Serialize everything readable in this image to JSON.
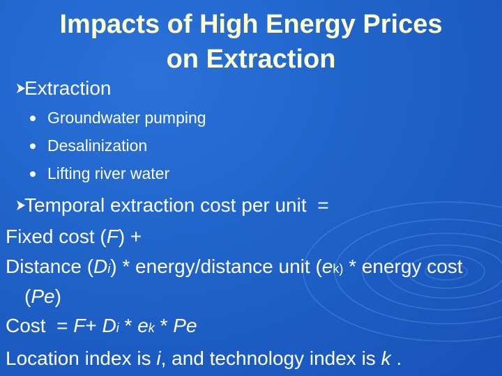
{
  "title": {
    "lines": [
      "Impacts of High Energy Prices",
      "on Extraction"
    ]
  },
  "bullets": [
    {
      "text": "Extraction",
      "items": [
        "Groundwater pumping",
        "Desalinization",
        "Lifting river water"
      ]
    },
    {
      "text": "Temporal extraction cost per unit  ="
    }
  ],
  "paragraphs": [
    [
      {
        "text": "Fixed cost ("
      },
      {
        "text": "F",
        "italic": true
      },
      {
        "text": ") +"
      }
    ],
    [
      {
        "text": "Distance ("
      },
      {
        "text": "D",
        "italic": true
      },
      {
        "text": "i",
        "italic": true,
        "sub": true
      },
      {
        "text": ") * energy/distance unit ("
      },
      {
        "text": "e",
        "italic": true
      },
      {
        "text": "k)",
        "sub": true
      },
      {
        "text": " * energy cost ("
      },
      {
        "text": "Pe",
        "italic": true
      },
      {
        "text": ")"
      }
    ],
    [
      {
        "text": "Cost  = "
      },
      {
        "text": "F",
        "italic": true
      },
      {
        "text": "+ "
      },
      {
        "text": "D",
        "italic": true
      },
      {
        "text": "i",
        "italic": true,
        "sub": true
      },
      {
        "text": " * "
      },
      {
        "text": "e",
        "italic": true
      },
      {
        "text": "k",
        "italic": true,
        "sub": true
      },
      {
        "text": " * "
      },
      {
        "text": "Pe",
        "italic": true
      }
    ],
    [
      {
        "text": "Location index is "
      },
      {
        "text": "i",
        "italic": true
      },
      {
        "text": ", and technology index is "
      },
      {
        "text": "k",
        "italic": true
      },
      {
        "text": " ."
      }
    ]
  ]
}
